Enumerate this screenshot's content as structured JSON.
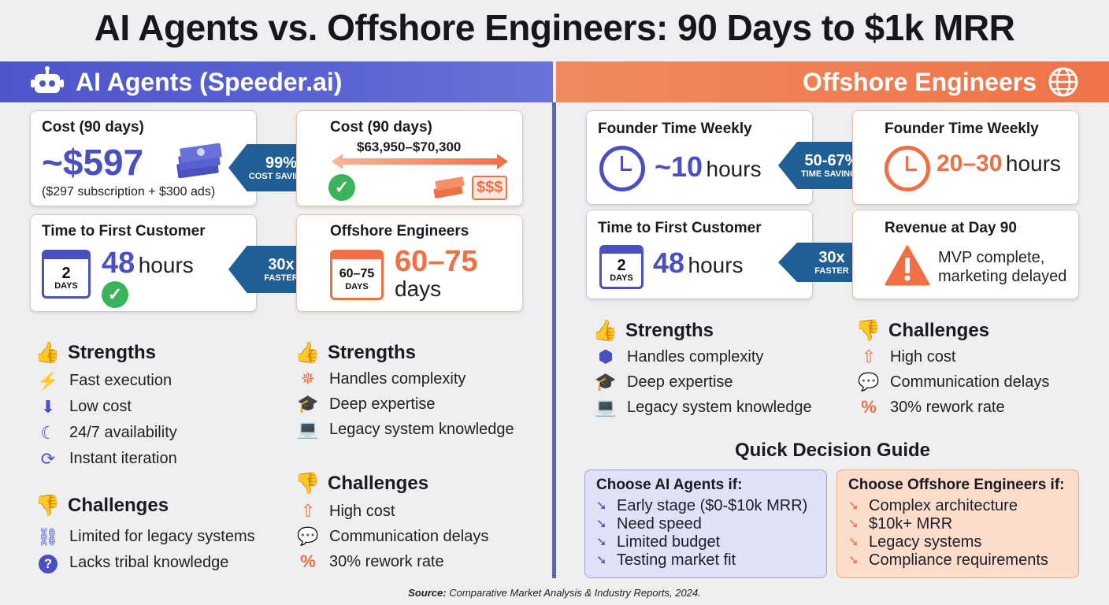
{
  "title": "AI Agents vs. Offshore Engineers: 90 Days to $1k MRR",
  "colors": {
    "ai_blue": "#4e56c9",
    "offshore_orange": "#ee7448",
    "arrow_navy": "#1f5f95",
    "check_green": "#3bb35a"
  },
  "left": {
    "banner": "AI Agents (Speeder.ai)",
    "banner_icon": "robot-icon",
    "cost_ai": {
      "title": "Cost (90 days)",
      "value": "~$597",
      "note": "($297 subscription + $300 ads)"
    },
    "cost_arrow": {
      "primary": "99%",
      "secondary": "COST SAVINGS"
    },
    "cost_off": {
      "title": "Cost (90 days)",
      "value": "$63,950–$70,300",
      "badge": "$$$"
    },
    "time_ai": {
      "title": "Time to First Customer",
      "value": "48",
      "unit": "hours",
      "cal_num": "2",
      "cal_label": "DAYS"
    },
    "time_arrow": {
      "primary": "30x",
      "secondary": "FASTER"
    },
    "time_off": {
      "title": "Offshore Engineers",
      "value": "60–75",
      "unit": "days",
      "cal_num": "60–75",
      "cal_label": "DAYS"
    },
    "ai_strengths": {
      "heading": "Strengths",
      "items": [
        {
          "icon": "lightning-icon",
          "label": "Fast execution"
        },
        {
          "icon": "down-arrow-icon",
          "label": "Low cost"
        },
        {
          "icon": "moon-sun-icon",
          "label": "24/7 availability"
        },
        {
          "icon": "refresh-icon",
          "label": "Instant iteration"
        }
      ]
    },
    "ai_challenges": {
      "heading": "Challenges",
      "items": [
        {
          "icon": "broken-link-icon",
          "label": "Limited for legacy systems"
        },
        {
          "icon": "question-icon",
          "label": "Lacks tribal knowledge"
        }
      ]
    },
    "off_strengths": {
      "heading": "Strengths",
      "items": [
        {
          "icon": "network-icon",
          "label": "Handles complexity"
        },
        {
          "icon": "graduation-cap-icon",
          "label": "Deep expertise"
        },
        {
          "icon": "laptop-icon",
          "label": "Legacy system knowledge"
        }
      ]
    },
    "off_challenges": {
      "heading": "Challenges",
      "items": [
        {
          "icon": "cost-up-icon",
          "label": "High cost"
        },
        {
          "icon": "chat-icon",
          "label": "Communication delays"
        },
        {
          "icon": "percent-icon",
          "label": "30% rework rate"
        }
      ]
    }
  },
  "right": {
    "banner": "Offshore Engineers",
    "banner_icon": "globe-icon",
    "founder_ai": {
      "title": "Founder Time Weekly",
      "value": "~10",
      "unit": "hours"
    },
    "founder_arrow": {
      "primary": "50-67%",
      "secondary": "TIME SAVINGS"
    },
    "founder_off": {
      "title": "Founder Time Weekly",
      "value": "20–30",
      "unit": "hours"
    },
    "time_ai": {
      "title": "Time to First Customer",
      "value": "48",
      "unit": "hours",
      "cal_num": "2",
      "cal_label": "DAYS"
    },
    "time_arrow": {
      "primary": "30x",
      "secondary": "FASTER"
    },
    "revenue": {
      "title": "Revenue at Day 90",
      "line1": "MVP complete,",
      "line2": "marketing delayed"
    },
    "strengths": {
      "heading": "Strengths",
      "items": [
        {
          "icon": "cubes-icon",
          "label": "Handles complexity"
        },
        {
          "icon": "graduation-cap-icon",
          "label": "Deep expertise"
        },
        {
          "icon": "laptop-icon",
          "label": "Legacy system knowledge"
        }
      ]
    },
    "challenges": {
      "heading": "Challenges",
      "items": [
        {
          "icon": "cost-up-icon",
          "label": "High cost"
        },
        {
          "icon": "chat-icon",
          "label": "Communication delays"
        },
        {
          "icon": "percent-icon",
          "label": "30% rework rate"
        }
      ]
    },
    "guide": {
      "heading": "Quick Decision Guide",
      "ai": {
        "title": "Choose AI Agents if:",
        "items": [
          "Early stage ($0-$10k MRR)",
          "Need speed",
          "Limited budget",
          "Testing market fit"
        ]
      },
      "off": {
        "title": "Choose Offshore Engineers if:",
        "items": [
          "Complex architecture",
          "$10k+ MRR",
          "Legacy systems",
          "Compliance requirements"
        ]
      }
    }
  },
  "source": {
    "label": "Source:",
    "text": "Comparative Market Analysis & Industry Reports, 2024."
  }
}
